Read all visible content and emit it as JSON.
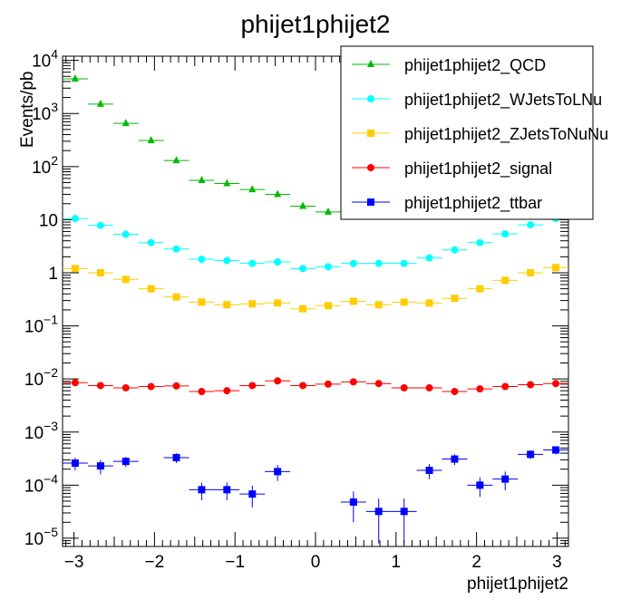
{
  "chart_data": {
    "type": "scatter",
    "title": "phijet1phijet2",
    "xlabel": "phijet1phijet2",
    "ylabel": "Events/pb",
    "xlim": [
      -3.1416,
      3.1416
    ],
    "ylim": [
      7e-06,
      12000
    ],
    "yscale": "log",
    "grid": false,
    "legend_position": "top-right",
    "bin_halfwidth": 0.157,
    "x_ticks": [
      -3,
      -2,
      -1,
      0,
      1,
      2,
      3
    ],
    "x_tick_labels": [
      "−3",
      "−2",
      "−1",
      "0",
      "1",
      "2",
      "3"
    ],
    "y_ticks": [
      {
        "value": 1e-05,
        "base": "10",
        "exp": "−5"
      },
      {
        "value": 0.0001,
        "base": "10",
        "exp": "−4"
      },
      {
        "value": 0.001,
        "base": "10",
        "exp": "−3"
      },
      {
        "value": 0.01,
        "base": "10",
        "exp": "−2"
      },
      {
        "value": 0.1,
        "base": "10",
        "exp": "−1"
      },
      {
        "value": 1,
        "base": "1",
        "exp": ""
      },
      {
        "value": 10,
        "base": "10",
        "exp": ""
      },
      {
        "value": 100,
        "base": "10",
        "exp": "2"
      },
      {
        "value": 1000,
        "base": "10",
        "exp": "3"
      },
      {
        "value": 10000,
        "base": "10",
        "exp": "4"
      }
    ],
    "series": [
      {
        "name": "phijet1phijet2_QCD",
        "color": "#00bb00",
        "marker": "triangle",
        "x": [
          -2.985,
          -2.67,
          -2.356,
          -2.042,
          -1.728,
          -1.414,
          -1.1,
          -0.785,
          -0.471,
          -0.157,
          0.157
        ],
        "y": [
          4500,
          1500,
          650,
          310,
          130,
          55,
          48,
          37,
          30,
          18,
          14
        ],
        "yerr": [
          null,
          null,
          null,
          null,
          null,
          null,
          null,
          null,
          null,
          null,
          null
        ]
      },
      {
        "name": "phijet1phijet2_WJetsToLNu",
        "color": "#00ffff",
        "marker": "circle",
        "x": [
          -2.985,
          -2.67,
          -2.356,
          -2.042,
          -1.728,
          -1.414,
          -1.1,
          -0.785,
          -0.471,
          -0.157,
          0.157,
          0.471,
          0.785,
          1.1,
          1.414,
          1.728,
          2.042,
          2.356,
          2.67,
          2.985
        ],
        "y": [
          10.5,
          7.8,
          5.3,
          3.7,
          2.8,
          1.8,
          1.7,
          1.5,
          1.6,
          1.2,
          1.3,
          1.5,
          1.5,
          1.5,
          1.9,
          2.7,
          3.7,
          5.4,
          8.0,
          10.5
        ],
        "yerr": [
          null,
          null,
          null,
          null,
          null,
          null,
          null,
          null,
          null,
          null,
          null,
          null,
          null,
          null,
          null,
          null,
          null,
          null,
          null,
          null
        ]
      },
      {
        "name": "phijet1phijet2_ZJetsToNuNu",
        "color": "#ffcc00",
        "marker": "square",
        "x": [
          -2.985,
          -2.67,
          -2.356,
          -2.042,
          -1.728,
          -1.414,
          -1.1,
          -0.785,
          -0.471,
          -0.157,
          0.157,
          0.471,
          0.785,
          1.1,
          1.414,
          1.728,
          2.042,
          2.356,
          2.67,
          2.985
        ],
        "y": [
          1.2,
          1.0,
          0.75,
          0.5,
          0.35,
          0.28,
          0.25,
          0.26,
          0.27,
          0.21,
          0.24,
          0.29,
          0.25,
          0.28,
          0.27,
          0.33,
          0.5,
          0.72,
          1.0,
          1.25
        ],
        "yerr": [
          null,
          null,
          null,
          null,
          null,
          null,
          null,
          null,
          null,
          null,
          null,
          null,
          null,
          null,
          null,
          null,
          null,
          null,
          null,
          null
        ]
      },
      {
        "name": "phijet1phijet2_signal",
        "color": "#ff0000",
        "marker": "circle",
        "x": [
          -2.985,
          -2.67,
          -2.356,
          -2.042,
          -1.728,
          -1.414,
          -1.1,
          -0.785,
          -0.471,
          -0.157,
          0.157,
          0.471,
          0.785,
          1.1,
          1.414,
          1.728,
          2.042,
          2.356,
          2.67,
          2.985
        ],
        "y": [
          0.0085,
          0.0075,
          0.0068,
          0.0072,
          0.0074,
          0.0058,
          0.006,
          0.0075,
          0.0092,
          0.0075,
          0.008,
          0.0088,
          0.0082,
          0.0068,
          0.0068,
          0.0058,
          0.0065,
          0.0072,
          0.0078,
          0.0082
        ],
        "yerr": [
          null,
          null,
          null,
          null,
          null,
          null,
          null,
          null,
          null,
          null,
          null,
          null,
          null,
          null,
          null,
          null,
          null,
          null,
          null,
          null
        ]
      },
      {
        "name": "phijet1phijet2_ttbar",
        "color": "#0000ff",
        "marker": "square",
        "x": [
          -2.985,
          -2.67,
          -2.356,
          -1.728,
          -1.414,
          -1.1,
          -0.785,
          -0.471,
          0.471,
          0.785,
          1.1,
          1.414,
          1.728,
          2.042,
          2.356,
          2.67,
          2.985
        ],
        "y": [
          0.00026,
          0.00023,
          0.00028,
          0.00033,
          8.2e-05,
          8.2e-05,
          6.8e-05,
          0.00018,
          4.8e-05,
          3.2e-05,
          3.2e-05,
          0.00019,
          0.00031,
          0.0001,
          0.00013,
          0.00038,
          0.00046
        ],
        "yerr": [
          [
            7e-05,
            7e-05
          ],
          [
            7e-05,
            7e-05
          ],
          [
            6e-05,
            6e-05
          ],
          [
            7e-05,
            7e-05
          ],
          [
            3e-05,
            3e-05
          ],
          [
            3e-05,
            3e-05
          ],
          [
            3e-05,
            3e-05
          ],
          [
            6e-05,
            6e-05
          ],
          [
            2.8e-05,
            2.8e-05
          ],
          [
            2.4e-05,
            2.4e-05
          ],
          [
            2.4e-05,
            2.4e-05
          ],
          [
            6e-05,
            6e-05
          ],
          [
            7e-05,
            7e-05
          ],
          [
            4e-05,
            4e-05
          ],
          [
            5e-05,
            5e-05
          ],
          [
            7e-05,
            7e-05
          ],
          [
            8e-05,
            8e-05
          ]
        ]
      }
    ]
  }
}
